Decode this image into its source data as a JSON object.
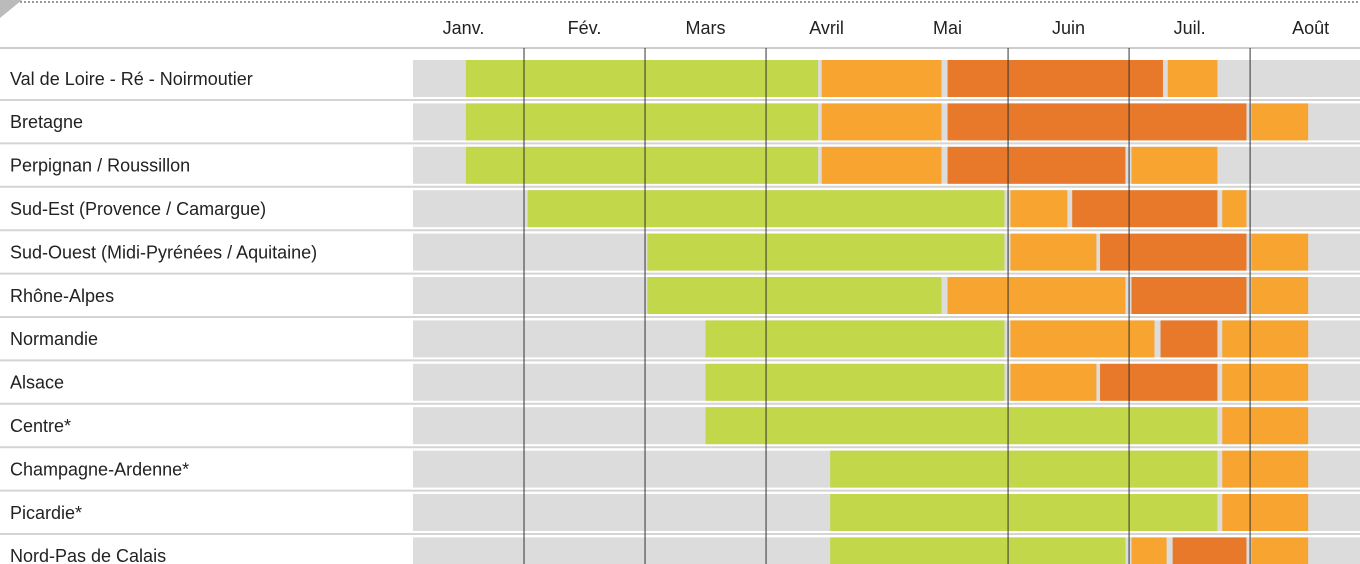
{
  "chart_data": {
    "type": "gantt",
    "months": [
      "Janv.",
      "Fév.",
      "Mars",
      "Avril",
      "Mai",
      "Juin",
      "Juil.",
      "Août"
    ],
    "xlim": [
      0,
      7.9
    ],
    "rows": [
      {
        "name": "Val de Loire - Ré - Noirmoutier",
        "segments": [
          {
            "start": 0.52,
            "end": 3.43,
            "color": "#c3d74a"
          },
          {
            "start": 3.46,
            "end": 4.45,
            "color": "#f7a530"
          },
          {
            "start": 4.5,
            "end": 6.28,
            "color": "#e8792a"
          },
          {
            "start": 6.32,
            "end": 6.73,
            "color": "#f7a530"
          }
        ]
      },
      {
        "name": "Bretagne",
        "segments": [
          {
            "start": 0.52,
            "end": 3.43,
            "color": "#c3d74a"
          },
          {
            "start": 3.46,
            "end": 4.45,
            "color": "#f7a530"
          },
          {
            "start": 4.5,
            "end": 6.97,
            "color": "#e8792a"
          },
          {
            "start": 7.01,
            "end": 7.48,
            "color": "#f7a530"
          }
        ]
      },
      {
        "name": "Perpignan / Roussillon",
        "segments": [
          {
            "start": 0.52,
            "end": 3.43,
            "color": "#c3d74a"
          },
          {
            "start": 3.46,
            "end": 4.45,
            "color": "#f7a530"
          },
          {
            "start": 4.5,
            "end": 5.97,
            "color": "#e8792a"
          },
          {
            "start": 6.02,
            "end": 6.73,
            "color": "#f7a530"
          }
        ]
      },
      {
        "name": "Sud-Est (Provence / Camargue)",
        "segments": [
          {
            "start": 1.03,
            "end": 4.97,
            "color": "#c3d74a"
          },
          {
            "start": 5.02,
            "end": 5.49,
            "color": "#f7a530"
          },
          {
            "start": 5.53,
            "end": 6.73,
            "color": "#e8792a"
          },
          {
            "start": 6.77,
            "end": 6.97,
            "color": "#f7a530"
          }
        ]
      },
      {
        "name": "Sud-Ouest (Midi-Pyrénées / Aquitaine)",
        "segments": [
          {
            "start": 2.02,
            "end": 4.97,
            "color": "#c3d74a"
          },
          {
            "start": 5.02,
            "end": 5.73,
            "color": "#f7a530"
          },
          {
            "start": 5.76,
            "end": 6.97,
            "color": "#e8792a"
          },
          {
            "start": 7.01,
            "end": 7.48,
            "color": "#f7a530"
          }
        ]
      },
      {
        "name": "Rhône-Alpes",
        "segments": [
          {
            "start": 2.02,
            "end": 4.45,
            "color": "#c3d74a"
          },
          {
            "start": 4.5,
            "end": 5.97,
            "color": "#f7a530"
          },
          {
            "start": 6.02,
            "end": 6.97,
            "color": "#e8792a"
          },
          {
            "start": 7.01,
            "end": 7.48,
            "color": "#f7a530"
          }
        ]
      },
      {
        "name": "Normandie",
        "segments": [
          {
            "start": 2.5,
            "end": 4.97,
            "color": "#c3d74a"
          },
          {
            "start": 5.02,
            "end": 6.21,
            "color": "#f7a530"
          },
          {
            "start": 6.26,
            "end": 6.73,
            "color": "#e8792a"
          },
          {
            "start": 6.77,
            "end": 7.48,
            "color": "#f7a530"
          }
        ]
      },
      {
        "name": "Alsace",
        "segments": [
          {
            "start": 2.5,
            "end": 4.97,
            "color": "#c3d74a"
          },
          {
            "start": 5.02,
            "end": 5.73,
            "color": "#f7a530"
          },
          {
            "start": 5.76,
            "end": 6.73,
            "color": "#e8792a"
          },
          {
            "start": 6.77,
            "end": 7.48,
            "color": "#f7a530"
          }
        ]
      },
      {
        "name": "Centre*",
        "segments": [
          {
            "start": 2.5,
            "end": 6.73,
            "color": "#c3d74a"
          },
          {
            "start": 6.77,
            "end": 7.48,
            "color": "#f7a530"
          }
        ]
      },
      {
        "name": "Champagne-Ardenne*",
        "segments": [
          {
            "start": 3.53,
            "end": 6.73,
            "color": "#c3d74a"
          },
          {
            "start": 6.77,
            "end": 7.48,
            "color": "#f7a530"
          }
        ]
      },
      {
        "name": "Picardie*",
        "segments": [
          {
            "start": 3.53,
            "end": 6.73,
            "color": "#c3d74a"
          },
          {
            "start": 6.77,
            "end": 7.48,
            "color": "#f7a530"
          }
        ]
      },
      {
        "name": "Nord-Pas de Calais",
        "segments": [
          {
            "start": 3.53,
            "end": 5.97,
            "color": "#c3d74a"
          },
          {
            "start": 6.02,
            "end": 6.31,
            "color": "#f7a530"
          },
          {
            "start": 6.36,
            "end": 6.97,
            "color": "#e8792a"
          },
          {
            "start": 7.01,
            "end": 7.48,
            "color": "#f7a530"
          }
        ]
      }
    ]
  }
}
